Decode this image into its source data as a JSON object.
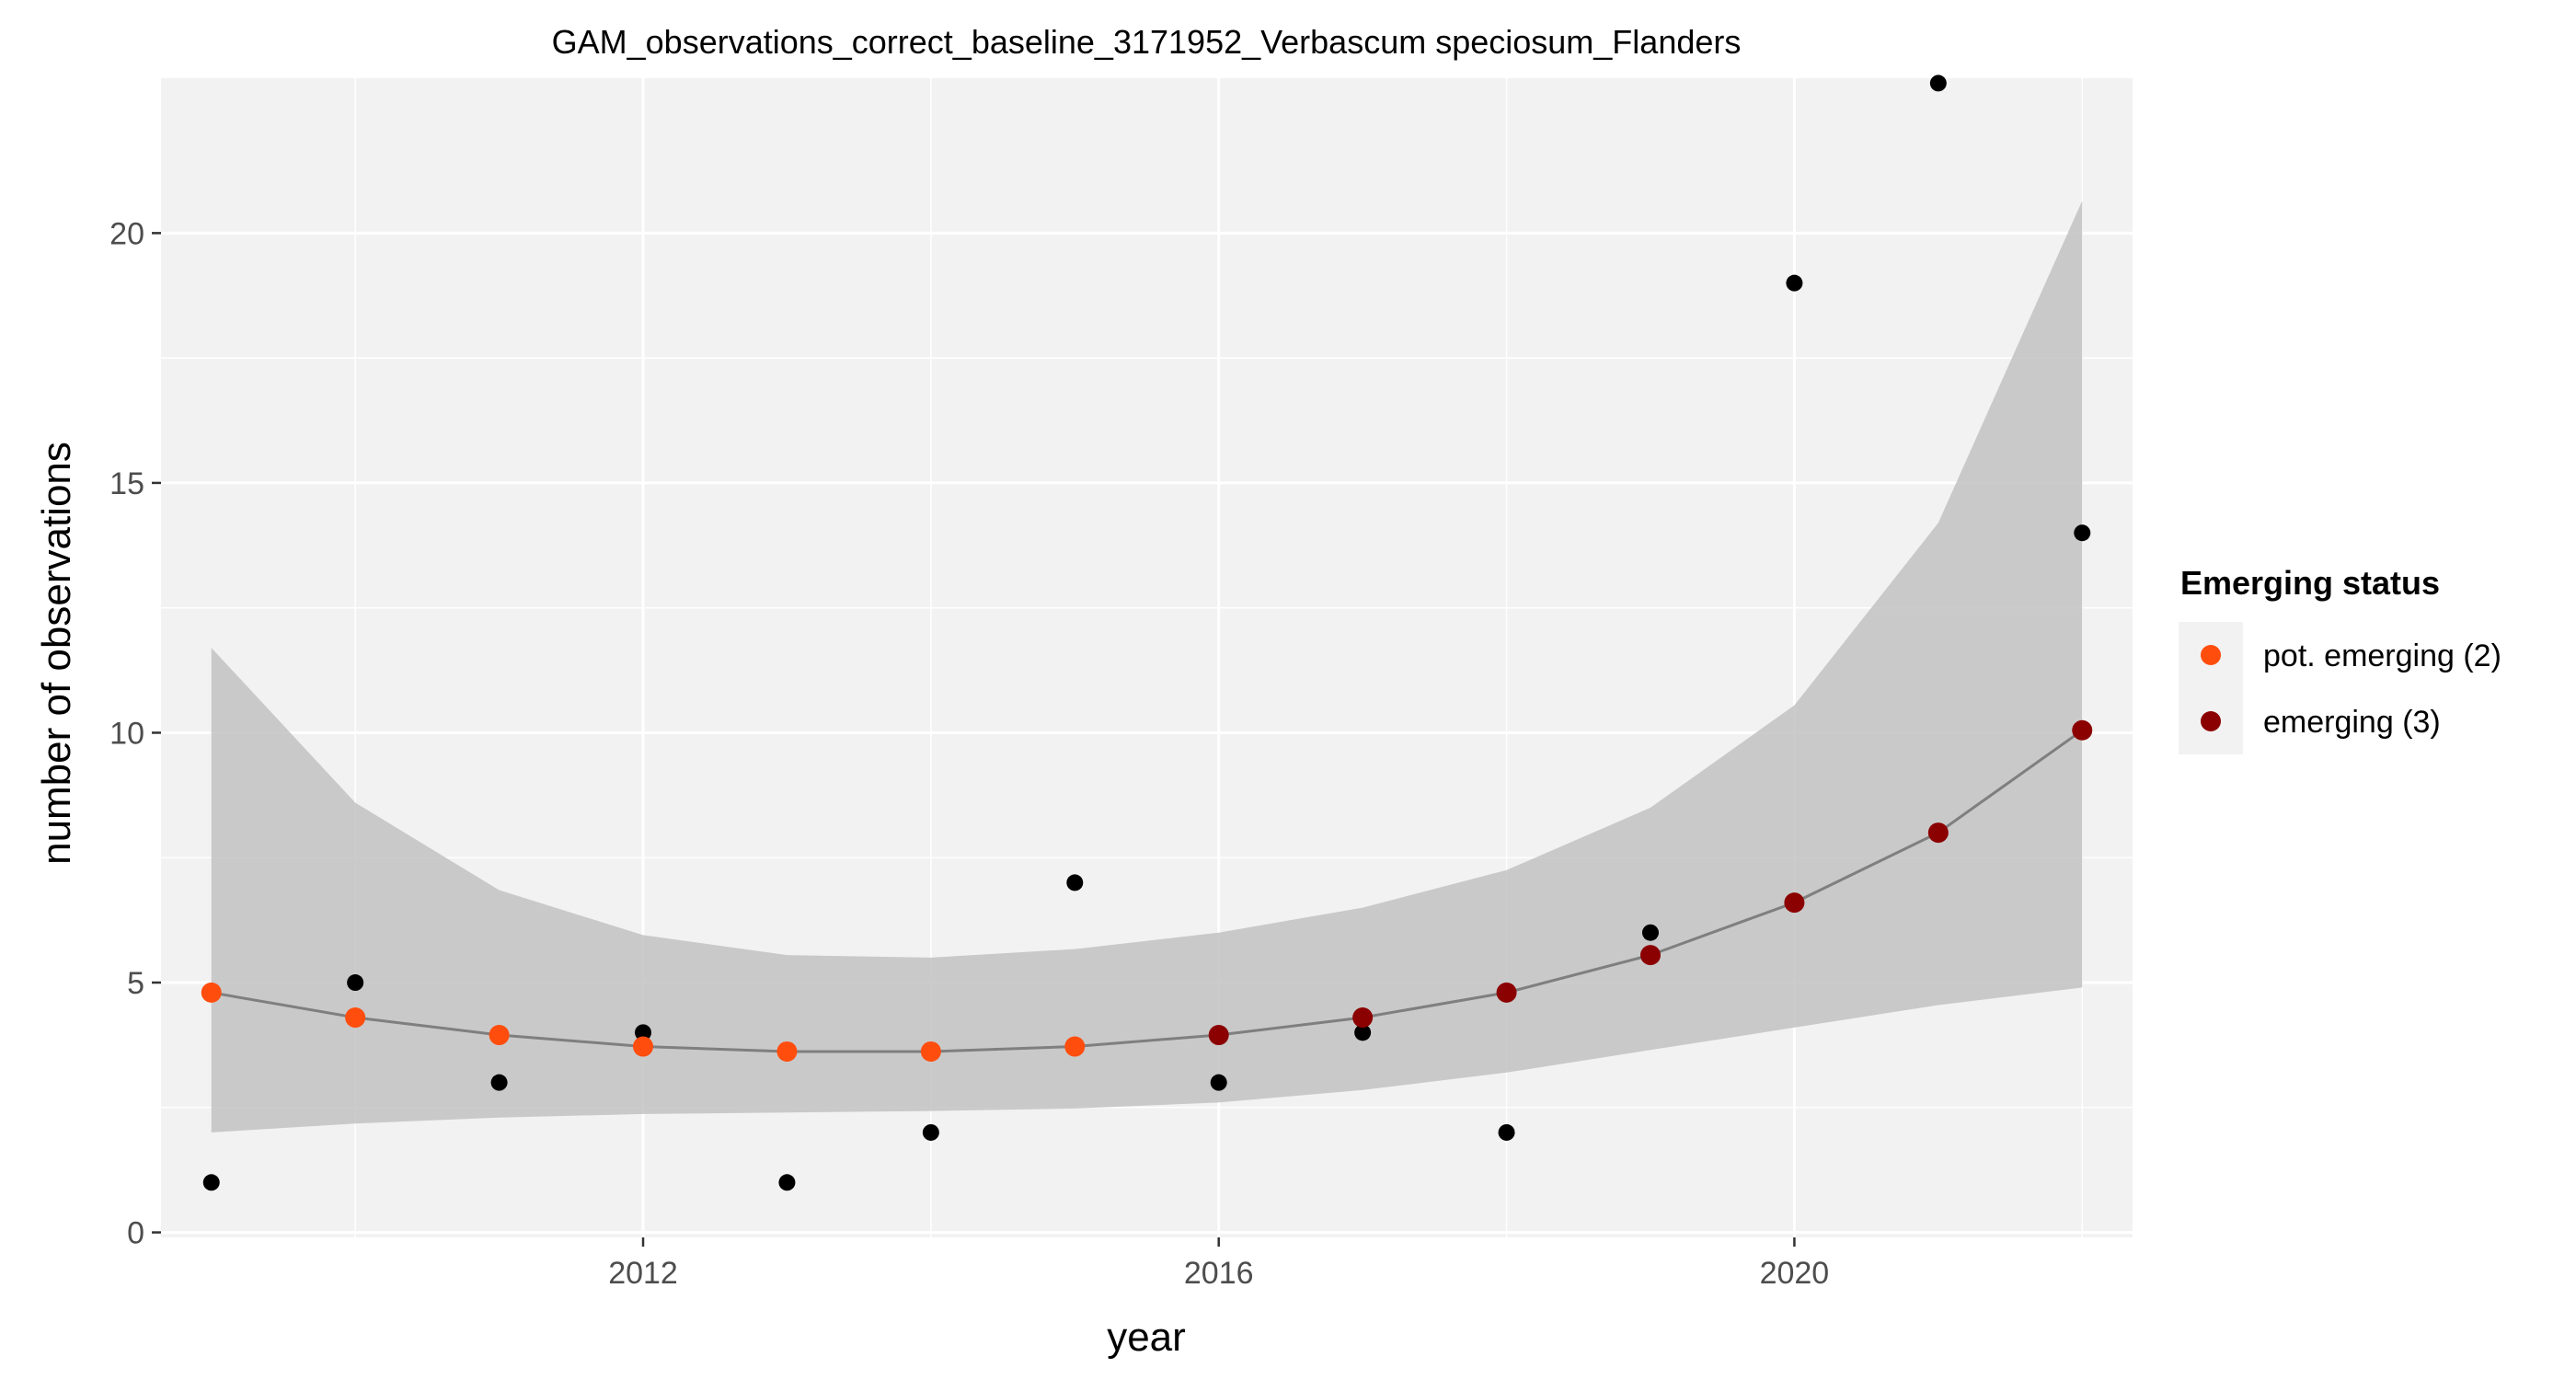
{
  "chart_data": {
    "type": "scatter",
    "title": "GAM_observations_correct_baseline_3171952_Verbascum speciosum_Flanders",
    "xlabel": "year",
    "ylabel": "number of observations",
    "xlim": [
      2008.65,
      2022.35
    ],
    "ylim": [
      -0.1,
      23.1
    ],
    "x_ticks": [
      2012,
      2016,
      2020
    ],
    "y_ticks": [
      0,
      5,
      10,
      15,
      20
    ],
    "x_tick_labels": [
      "2012",
      "2016",
      "2020"
    ],
    "y_tick_labels": [
      "0",
      "5",
      "10",
      "15",
      "20"
    ],
    "grid": true,
    "legend_position": "right",
    "legend_title": "Emerging status",
    "legend": [
      {
        "label": "pot. emerging (2)",
        "color": "#ff4d0d"
      },
      {
        "label": "emerging (3)",
        "color": "#8b0000"
      }
    ],
    "observations": {
      "x": [
        2009,
        2010,
        2011,
        2012,
        2013,
        2014,
        2015,
        2016,
        2017,
        2018,
        2019,
        2020,
        2021,
        2022
      ],
      "y": [
        1,
        5,
        3,
        4,
        1,
        2,
        7,
        3,
        4,
        2,
        6,
        19,
        23,
        14
      ],
      "color": "#000000"
    },
    "fit": {
      "x": [
        2009,
        2010,
        2011,
        2012,
        2013,
        2014,
        2015,
        2016,
        2017,
        2018,
        2019,
        2020,
        2021,
        2022
      ],
      "y": [
        4.8,
        4.3,
        3.95,
        3.72,
        3.62,
        3.62,
        3.72,
        3.95,
        4.3,
        4.8,
        5.55,
        6.6,
        8.0,
        10.05
      ],
      "lower": [
        2.0,
        2.18,
        2.3,
        2.37,
        2.4,
        2.43,
        2.48,
        2.6,
        2.85,
        3.2,
        3.65,
        4.1,
        4.55,
        4.9
      ],
      "upper": [
        11.7,
        8.6,
        6.85,
        5.95,
        5.55,
        5.5,
        5.67,
        6.0,
        6.5,
        7.25,
        8.5,
        10.55,
        14.2,
        20.65
      ],
      "status": [
        "pot. emerging (2)",
        "pot. emerging (2)",
        "pot. emerging (2)",
        "pot. emerging (2)",
        "pot. emerging (2)",
        "pot. emerging (2)",
        "pot. emerging (2)",
        "emerging (3)",
        "emerging (3)",
        "emerging (3)",
        "emerging (3)",
        "emerging (3)",
        "emerging (3)",
        "emerging (3)"
      ],
      "line_color": "#7f7f7f",
      "band_color": "#bebebe"
    },
    "colors": {
      "panel_bg": "#f2f2f2",
      "grid_major": "#ffffff",
      "legend_key_bg": "#f2f2f2",
      "tick_text": "#4d4d4d"
    }
  }
}
